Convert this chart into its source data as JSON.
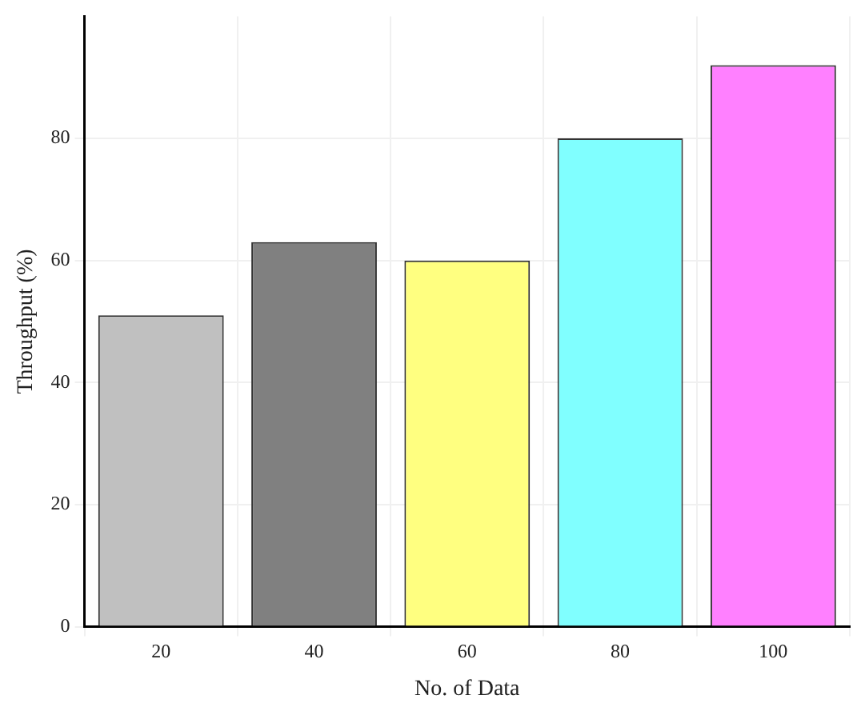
{
  "chart_data": {
    "type": "bar",
    "xlabel": "No. of Data",
    "ylabel": "Throughput (%)",
    "categories": [
      "20",
      "40",
      "60",
      "80",
      "100"
    ],
    "values": [
      51,
      63,
      60,
      80,
      92
    ],
    "colors": [
      "#c0c0c0",
      "#808080",
      "#ffff80",
      "#80ffff",
      "#ff80ff"
    ],
    "ylim": [
      0,
      100
    ],
    "yticks": [
      0,
      20,
      40,
      60,
      80
    ],
    "grid": true,
    "legend": false
  }
}
